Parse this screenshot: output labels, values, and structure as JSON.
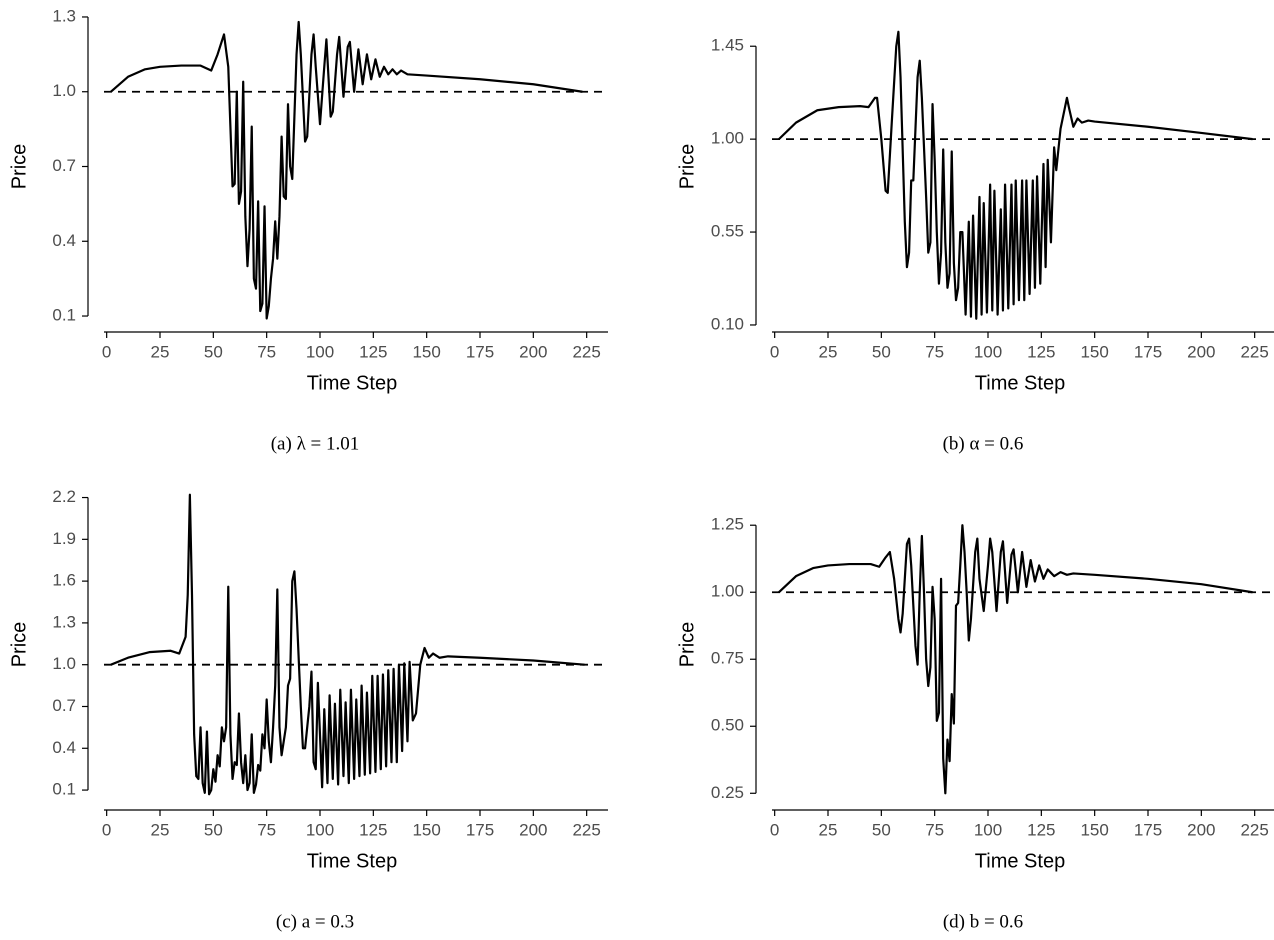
{
  "chart_data": [
    {
      "type": "line",
      "caption": "(a) λ = 1.01",
      "x_label": "Time Step",
      "y_label": "Price",
      "color": "#000000",
      "reference_line": 1,
      "xlim": [
        -5,
        235
      ],
      "xticks": [
        0,
        25,
        50,
        75,
        100,
        125,
        150,
        175,
        200,
        225
      ],
      "ylim": [
        0.06,
        1.34
      ],
      "yticks": [
        1.3,
        {
          "value": 1,
          "label": "1.0"
        },
        0.7,
        0.4,
        0.1
      ],
      "x": [
        2,
        10,
        18,
        25,
        35,
        44,
        49,
        52,
        55,
        57,
        59,
        60,
        61,
        62,
        63,
        64,
        65,
        66,
        67,
        68,
        69,
        70,
        71,
        72,
        73,
        74,
        75,
        76,
        77,
        78,
        79,
        80,
        81,
        82,
        83,
        84,
        85,
        86,
        87,
        88,
        89,
        90,
        91,
        93,
        94,
        96,
        97,
        98,
        100,
        102,
        103,
        105,
        106,
        108,
        109,
        111,
        113,
        114,
        116,
        118,
        120,
        122,
        124,
        126,
        128,
        130,
        132,
        134,
        136,
        138,
        141,
        150,
        175,
        200,
        223
      ],
      "values": [
        1.0,
        1.06,
        1.09,
        1.1,
        1.105,
        1.105,
        1.085,
        1.15,
        1.23,
        1.1,
        0.62,
        0.63,
        1.0,
        0.55,
        0.6,
        1.04,
        0.5,
        0.3,
        0.45,
        0.86,
        0.25,
        0.21,
        0.56,
        0.12,
        0.15,
        0.54,
        0.09,
        0.14,
        0.25,
        0.33,
        0.48,
        0.33,
        0.5,
        0.82,
        0.58,
        0.57,
        0.95,
        0.7,
        0.65,
        0.9,
        1.15,
        1.28,
        1.15,
        0.8,
        0.82,
        1.15,
        1.23,
        1.1,
        0.87,
        1.1,
        1.21,
        0.9,
        0.92,
        1.15,
        1.22,
        0.98,
        1.18,
        1.2,
        1.0,
        1.17,
        1.03,
        1.15,
        1.05,
        1.13,
        1.06,
        1.1,
        1.07,
        1.09,
        1.07,
        1.085,
        1.07,
        1.065,
        1.05,
        1.03,
        1.0
      ]
    },
    {
      "type": "line",
      "caption": "(b) α = 0.6",
      "x_label": "Time Step",
      "y_label": "Price",
      "color": "#000000",
      "reference_line": 1,
      "xlim": [
        -5,
        235
      ],
      "xticks": [
        0,
        25,
        50,
        75,
        100,
        125,
        150,
        175,
        200,
        225
      ],
      "ylim": [
        0.095,
        1.64
      ],
      "yticks": [
        {
          "value": 1.45,
          "label": "1.45"
        },
        {
          "value": 1,
          "label": "1.00"
        },
        {
          "value": 0.55,
          "label": "0.55"
        },
        {
          "value": 0.1,
          "label": "0.10"
        }
      ],
      "x": [
        2,
        10,
        20,
        30,
        40,
        44,
        47,
        48,
        50,
        52,
        53,
        55,
        57,
        58,
        59,
        61,
        62,
        63,
        64,
        65,
        67,
        68,
        69,
        71,
        72,
        73,
        74,
        75,
        76,
        77,
        78,
        79,
        80,
        81,
        82,
        83,
        84,
        85,
        86,
        87,
        88,
        89.5,
        91,
        92,
        93,
        94.5,
        96,
        97,
        98,
        99.5,
        101,
        102,
        103,
        104.5,
        106,
        107,
        108,
        109.5,
        111,
        112,
        113,
        114.5,
        116,
        117,
        118,
        119.5,
        121,
        122,
        123,
        124.5,
        126,
        127,
        128,
        129.5,
        131,
        132,
        134,
        136,
        137,
        138,
        140,
        142,
        144,
        147,
        150,
        175,
        200,
        224
      ],
      "values": [
        1.0,
        1.08,
        1.14,
        1.155,
        1.16,
        1.155,
        1.2,
        1.2,
        1.0,
        0.75,
        0.74,
        1.1,
        1.45,
        1.52,
        1.3,
        0.6,
        0.38,
        0.45,
        0.8,
        0.8,
        1.3,
        1.38,
        1.2,
        0.72,
        0.45,
        0.5,
        1.17,
        0.9,
        0.55,
        0.3,
        0.45,
        0.95,
        0.5,
        0.28,
        0.35,
        0.94,
        0.4,
        0.22,
        0.28,
        0.55,
        0.55,
        0.15,
        0.6,
        0.14,
        0.63,
        0.13,
        0.72,
        0.15,
        0.69,
        0.16,
        0.78,
        0.17,
        0.75,
        0.15,
        0.66,
        0.17,
        0.78,
        0.18,
        0.78,
        0.2,
        0.8,
        0.22,
        0.8,
        0.22,
        0.8,
        0.25,
        0.8,
        0.28,
        0.82,
        0.3,
        0.88,
        0.38,
        0.9,
        0.5,
        0.96,
        0.85,
        1.05,
        1.15,
        1.2,
        1.15,
        1.06,
        1.1,
        1.08,
        1.09,
        1.085,
        1.06,
        1.03,
        1.0
      ]
    },
    {
      "type": "line",
      "caption": "(c) a = 0.3",
      "x_label": "Time Step",
      "y_label": "Price",
      "color": "#000000",
      "reference_line": 1,
      "xlim": [
        -5,
        235
      ],
      "xticks": [
        0,
        25,
        50,
        75,
        100,
        125,
        150,
        175,
        200,
        225
      ],
      "ylim": [
        0,
        2.29
      ],
      "yticks": [
        2.2,
        1.9,
        1.6,
        1.3,
        {
          "value": 1,
          "label": "1.0"
        },
        0.7,
        0.4,
        0.1
      ],
      "x": [
        2,
        10,
        20,
        30,
        34,
        37,
        38,
        39,
        40,
        41,
        42,
        43,
        44,
        45,
        46,
        47,
        48,
        49,
        50,
        51,
        52,
        53,
        54,
        55,
        56,
        57,
        58,
        59,
        60,
        61,
        62,
        63,
        64,
        65,
        66,
        67,
        68,
        69,
        70,
        71,
        72,
        73,
        74,
        75,
        76,
        77,
        78,
        79,
        80,
        81,
        82,
        83,
        84,
        85,
        86,
        87,
        88,
        89,
        91,
        92,
        93,
        95,
        96,
        97,
        98,
        99,
        101,
        102,
        103.5,
        104.5,
        106,
        107,
        108.5,
        109.5,
        111,
        112,
        113.5,
        114.5,
        116,
        117,
        118.5,
        119.5,
        121,
        122,
        123.5,
        124.5,
        126,
        127,
        128.5,
        129.5,
        131,
        132,
        133.5,
        134.5,
        136,
        137,
        138.5,
        139.5,
        141,
        142,
        143.5,
        145,
        147,
        149,
        151,
        153,
        156,
        160,
        175,
        200,
        224
      ],
      "values": [
        1.0,
        1.05,
        1.09,
        1.1,
        1.08,
        1.2,
        1.5,
        2.22,
        1.5,
        0.5,
        0.2,
        0.18,
        0.55,
        0.15,
        0.08,
        0.52,
        0.07,
        0.1,
        0.25,
        0.16,
        0.35,
        0.27,
        0.55,
        0.45,
        0.55,
        1.56,
        0.5,
        0.18,
        0.3,
        0.28,
        0.65,
        0.3,
        0.15,
        0.35,
        0.1,
        0.15,
        0.5,
        0.08,
        0.14,
        0.28,
        0.24,
        0.5,
        0.4,
        0.75,
        0.45,
        0.3,
        0.55,
        0.85,
        1.54,
        0.55,
        0.35,
        0.45,
        0.55,
        0.85,
        0.9,
        1.6,
        1.67,
        1.4,
        0.7,
        0.4,
        0.4,
        0.7,
        0.95,
        0.3,
        0.25,
        0.87,
        0.12,
        0.68,
        0.15,
        0.78,
        0.18,
        0.72,
        0.14,
        0.82,
        0.2,
        0.73,
        0.15,
        0.82,
        0.18,
        0.75,
        0.2,
        0.85,
        0.21,
        0.8,
        0.22,
        0.92,
        0.23,
        0.92,
        0.25,
        0.93,
        0.27,
        0.96,
        0.3,
        0.97,
        0.3,
        1.0,
        0.38,
        1.01,
        0.45,
        1.02,
        0.6,
        0.65,
        1.0,
        1.12,
        1.05,
        1.08,
        1.05,
        1.06,
        1.05,
        1.03,
        1.0
      ]
    },
    {
      "type": "line",
      "caption": "(d) b = 0.6",
      "x_label": "Time Step",
      "y_label": "Price",
      "color": "#000000",
      "reference_line": 1,
      "xlim": [
        -5,
        235
      ],
      "xticks": [
        0,
        25,
        50,
        75,
        100,
        125,
        150,
        175,
        200,
        225
      ],
      "ylim": [
        0.21,
        1.4
      ],
      "yticks": [
        1.25,
        {
          "value": 1,
          "label": "1.00"
        },
        0.75,
        {
          "value": 0.5,
          "label": "0.50"
        },
        0.25
      ],
      "x": [
        2,
        10,
        18,
        25,
        35,
        45,
        49,
        52,
        54,
        56,
        58,
        59,
        60,
        62,
        63,
        64,
        66,
        67,
        68,
        69,
        70,
        71,
        72,
        73,
        74,
        75,
        76,
        77,
        78,
        79,
        80,
        81,
        82,
        83,
        84,
        85,
        86,
        87,
        88,
        89,
        90,
        91,
        92,
        94,
        95,
        96,
        98,
        100,
        101,
        102,
        104,
        106,
        107,
        109,
        111,
        112,
        114,
        116,
        118,
        120,
        122,
        124,
        126,
        128,
        131,
        134,
        137,
        140,
        150,
        175,
        200,
        224
      ],
      "values": [
        1.0,
        1.06,
        1.09,
        1.1,
        1.105,
        1.105,
        1.095,
        1.13,
        1.15,
        1.05,
        0.9,
        0.85,
        0.92,
        1.18,
        1.2,
        1.1,
        0.8,
        0.73,
        1.0,
        1.21,
        1.0,
        0.75,
        0.65,
        0.72,
        1.02,
        0.9,
        0.52,
        0.55,
        1.05,
        0.38,
        0.25,
        0.45,
        0.37,
        0.62,
        0.51,
        0.95,
        0.96,
        1.1,
        1.25,
        1.15,
        1.0,
        0.82,
        0.9,
        1.15,
        1.2,
        1.05,
        0.93,
        1.1,
        1.2,
        1.15,
        0.93,
        1.15,
        1.19,
        0.96,
        1.14,
        1.16,
        1.0,
        1.15,
        1.02,
        1.12,
        1.04,
        1.1,
        1.05,
        1.085,
        1.06,
        1.075,
        1.065,
        1.07,
        1.065,
        1.05,
        1.03,
        1.0
      ]
    }
  ]
}
